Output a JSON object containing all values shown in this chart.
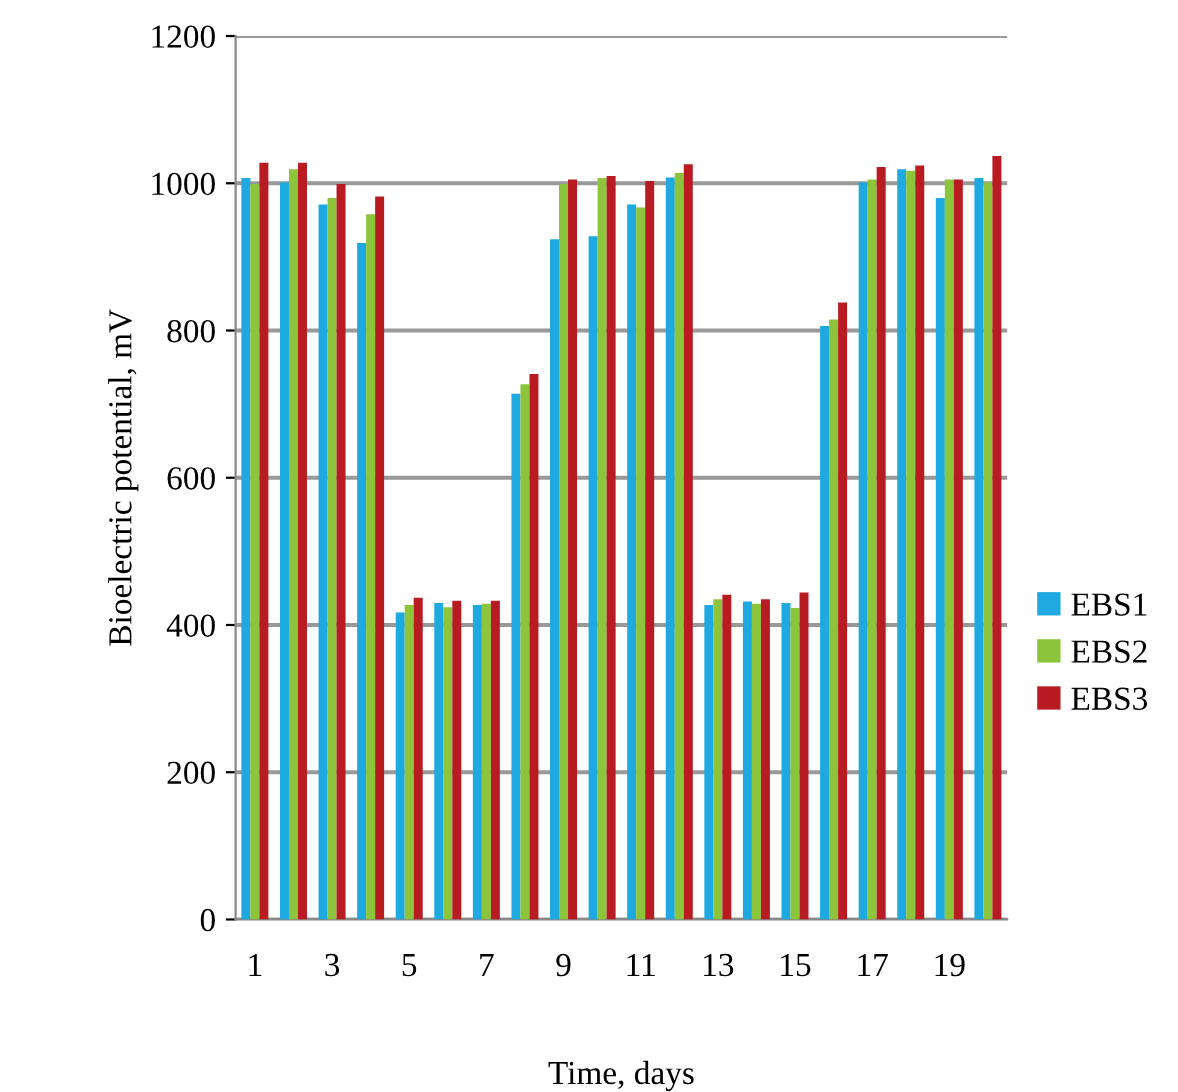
{
  "chart_data": {
    "type": "bar",
    "xlabel": "Time, days",
    "ylabel": "Bioelectric potential, mV",
    "categories": [
      "1",
      null,
      "3",
      null,
      "5",
      null,
      "7",
      null,
      "9",
      null,
      "11",
      null,
      "13",
      null,
      "15",
      null,
      "17",
      null,
      "19",
      null
    ],
    "series": [
      {
        "name": "EBS1",
        "color": "#1ea9e1",
        "values": [
          1007,
          1001,
          971,
          919,
          417,
          430,
          427,
          714,
          924,
          928,
          971,
          1008,
          427,
          432,
          430,
          806,
          1001,
          1019,
          980,
          1007
        ]
      },
      {
        "name": "EBS2",
        "color": "#8cc43c",
        "values": [
          999,
          1019,
          980,
          958,
          427,
          424,
          429,
          727,
          999,
          1007,
          967,
          1014,
          435,
          429,
          423,
          815,
          1005,
          1017,
          1005,
          1001
        ]
      },
      {
        "name": "EBS3",
        "color": "#b81c22",
        "values": [
          1028,
          1028,
          999,
          982,
          437,
          433,
          433,
          741,
          1005,
          1010,
          1003,
          1026,
          441,
          435,
          444,
          838,
          1022,
          1024,
          1005,
          1037
        ]
      }
    ],
    "ylim": [
      0,
      1200
    ],
    "yticks": [
      0,
      200,
      400,
      600,
      800,
      1000,
      1200
    ],
    "grid": "y",
    "legend": "right"
  }
}
